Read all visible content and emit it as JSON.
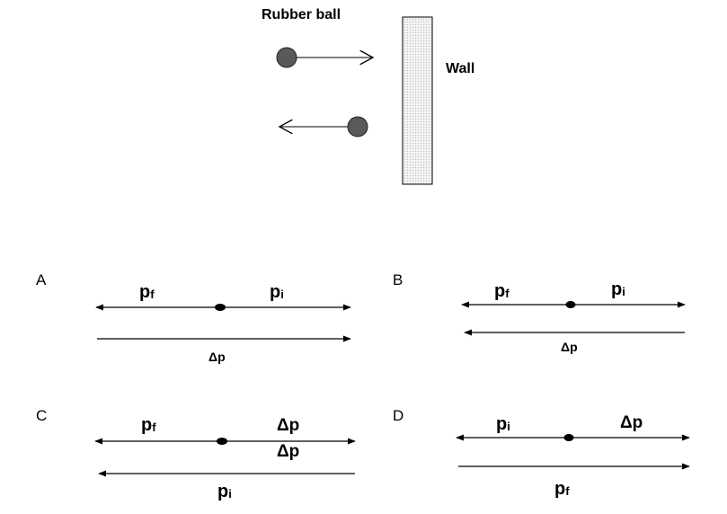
{
  "scene": {
    "ball_label": "Rubber ball",
    "wall_label": "Wall"
  },
  "options": [
    {
      "letter": "A",
      "top_left": {
        "main": "p",
        "sub": "f"
      },
      "top_right": {
        "main": "p",
        "sub": "i"
      },
      "bottom_label": "Δp"
    },
    {
      "letter": "B",
      "top_left": {
        "main": "p",
        "sub": "f"
      },
      "top_right": {
        "main": "p",
        "sub": "i"
      },
      "bottom_label": "Δp"
    },
    {
      "letter": "C",
      "top_left": {
        "main": "p",
        "sub": "f"
      },
      "top_right": "Δp",
      "middle_right": "Δp",
      "bottom_label": {
        "main": "p",
        "sub": "i"
      }
    },
    {
      "letter": "D",
      "top_left": {
        "main": "p",
        "sub": "i"
      },
      "top_right": "Δp",
      "bottom_label": {
        "main": "p",
        "sub": "f"
      }
    }
  ]
}
